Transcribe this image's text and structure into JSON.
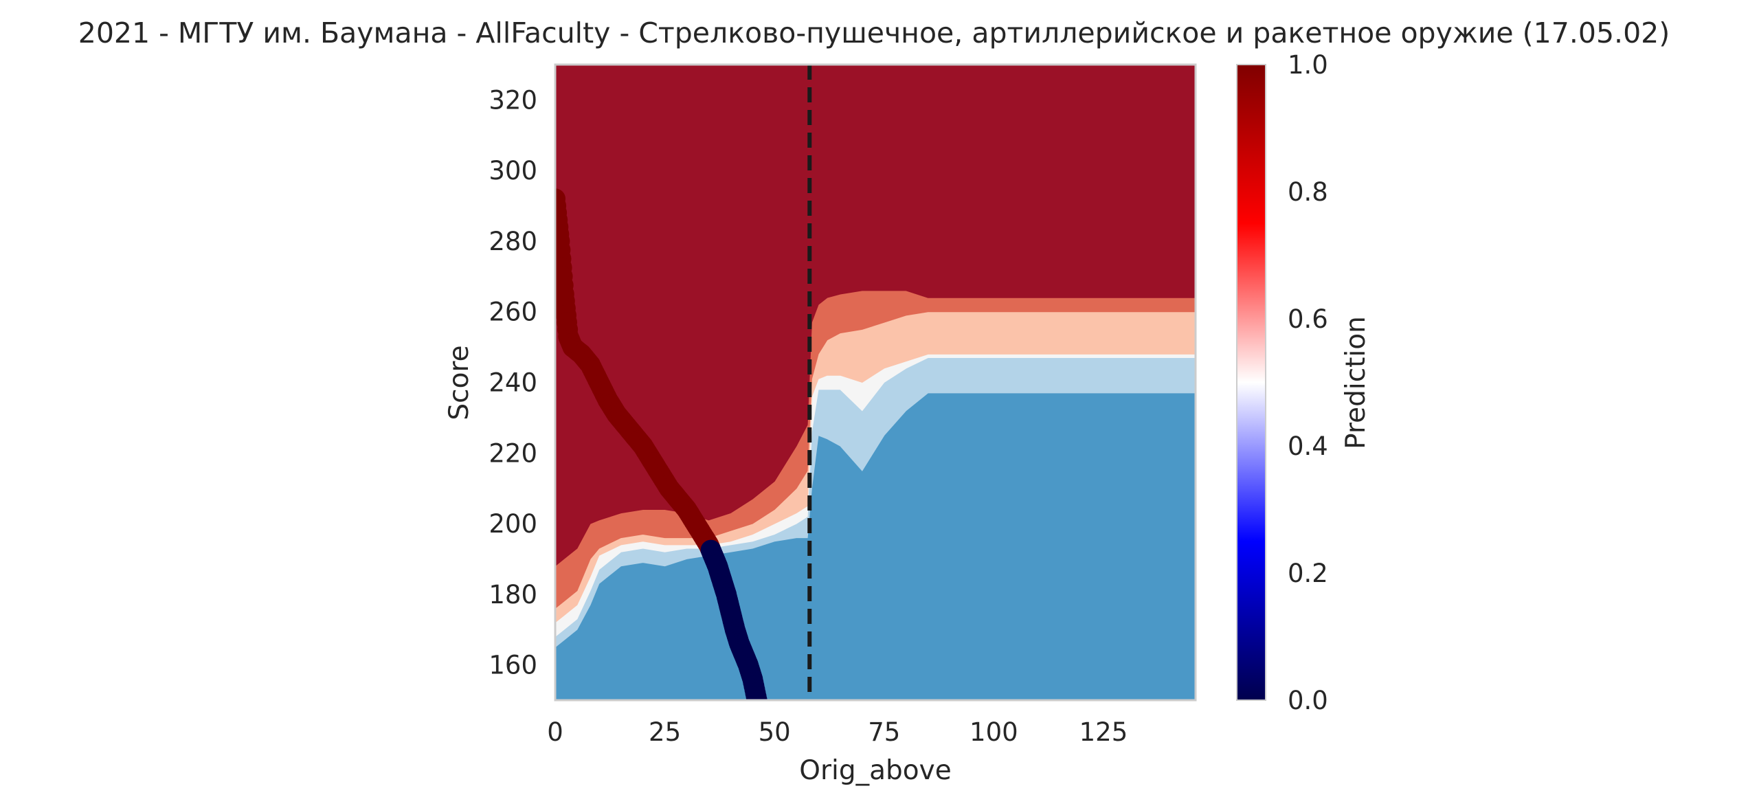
{
  "chart_data": {
    "type": "heatmap",
    "title": "2021 - МГТУ им. Баумана - AllFaculty - Стрелково-пушечное, артиллерийское и ракетное оружие (17.05.02)",
    "xlabel": "Orig_above",
    "ylabel": "Score",
    "xlim": [
      0,
      146
    ],
    "ylim": [
      150,
      330
    ],
    "x_ticks": [
      0,
      25,
      50,
      75,
      100,
      125
    ],
    "x_tick_labels": [
      "0",
      "25",
      "50",
      "75",
      "100",
      "125"
    ],
    "y_ticks": [
      160,
      180,
      200,
      220,
      240,
      260,
      280,
      300,
      320
    ],
    "y_tick_labels": [
      "160",
      "180",
      "200",
      "220",
      "240",
      "260",
      "280",
      "300",
      "320"
    ],
    "grid": false,
    "colorbar": {
      "label": "Prediction",
      "range": [
        0,
        1
      ],
      "ticks": [
        0.0,
        0.2,
        0.4,
        0.6,
        0.8,
        1.0
      ],
      "tick_labels": [
        "0.0",
        "0.2",
        "0.4",
        "0.6",
        "0.8",
        "1.0"
      ],
      "colormap": "seismic"
    },
    "contour_levels": [
      {
        "level": 0.05,
        "color": "#1b5797"
      },
      {
        "level": 0.15,
        "color": "#4b98c7"
      },
      {
        "level": 0.3,
        "color": "#b3d3e8"
      },
      {
        "level": 0.5,
        "color": "#f5f5f5"
      },
      {
        "level": 0.65,
        "color": "#fbc3aa"
      },
      {
        "level": 0.8,
        "color": "#e06953"
      },
      {
        "level": 0.95,
        "color": "#9b1127"
      }
    ],
    "contour_boundaries": {
      "x": [
        0,
        2,
        5,
        8,
        10,
        15,
        20,
        25,
        30,
        35,
        40,
        45,
        50,
        55,
        57.5,
        58.5,
        60,
        62,
        65,
        70,
        75,
        80,
        85,
        90,
        100,
        110,
        120,
        130,
        146
      ],
      "b_015": [
        150,
        150,
        150,
        150,
        150,
        150,
        150,
        150,
        150,
        150,
        150,
        150,
        150,
        150,
        150,
        150,
        150,
        150,
        150,
        150,
        150,
        150,
        150,
        150,
        150,
        150,
        150,
        150,
        150
      ],
      "b_030": [
        165,
        167,
        170,
        177,
        183,
        188,
        189,
        188,
        190,
        191,
        192,
        193,
        195,
        196,
        196,
        210,
        225,
        224,
        222,
        215,
        225,
        232,
        237,
        237,
        237,
        237,
        237,
        237,
        237
      ],
      "b_050": [
        168,
        170,
        173,
        181,
        187,
        192,
        193,
        192,
        193,
        193,
        194,
        195,
        197,
        200,
        202,
        226,
        238,
        238,
        238,
        232,
        240,
        244,
        247,
        247,
        247,
        247,
        247,
        247,
        247
      ],
      "b_065": [
        172,
        174,
        177,
        185,
        191,
        194,
        195,
        194,
        194,
        194,
        195,
        197,
        200,
        203,
        205,
        236,
        241,
        242,
        242,
        240,
        244,
        246,
        248,
        248,
        248,
        248,
        248,
        248,
        248
      ],
      "b_080": [
        176,
        178,
        181,
        190,
        193,
        196,
        197,
        196,
        196,
        196,
        198,
        200,
        204,
        210,
        215,
        241,
        248,
        252,
        254,
        255,
        257,
        259,
        260,
        260,
        260,
        260,
        260,
        260,
        260
      ],
      "b_095": [
        188,
        190,
        193,
        200,
        201,
        203,
        204,
        204,
        203,
        201,
        203,
        207,
        212,
        222,
        228,
        257,
        262,
        264,
        265,
        266,
        266,
        266,
        264,
        264,
        264,
        264,
        264,
        264,
        264
      ],
      "b_100": [
        188,
        190,
        193,
        200,
        202,
        204,
        205,
        205,
        205,
        205,
        207,
        212,
        220,
        230,
        234,
        282,
        290,
        288,
        280,
        280,
        278,
        276,
        270,
        269,
        269,
        269,
        271,
        271,
        271
      ]
    },
    "trajectory": {
      "x": [
        0,
        1,
        2,
        3,
        4,
        6,
        8,
        10,
        12,
        14,
        16,
        18,
        20,
        22,
        24,
        26,
        28,
        30,
        32,
        34,
        35,
        36,
        37,
        38,
        39,
        40,
        41,
        42,
        43,
        44,
        45,
        46
      ],
      "y": [
        292,
        280,
        265,
        253,
        250,
        248,
        245,
        240,
        235,
        231,
        228,
        225,
        222,
        218,
        214,
        210,
        207,
        204,
        200,
        196,
        194,
        191,
        188,
        184,
        180,
        175,
        170,
        166,
        163,
        160,
        156,
        150
      ],
      "prediction": [
        1,
        1,
        1,
        1,
        1,
        1,
        1,
        1,
        1,
        1,
        1,
        1,
        1,
        1,
        1,
        1,
        1,
        1,
        1,
        1,
        1,
        0,
        0,
        0,
        0,
        0,
        0,
        0,
        0,
        0,
        0,
        0
      ]
    },
    "vertical_line": {
      "x": 58,
      "style": "dashed"
    }
  }
}
